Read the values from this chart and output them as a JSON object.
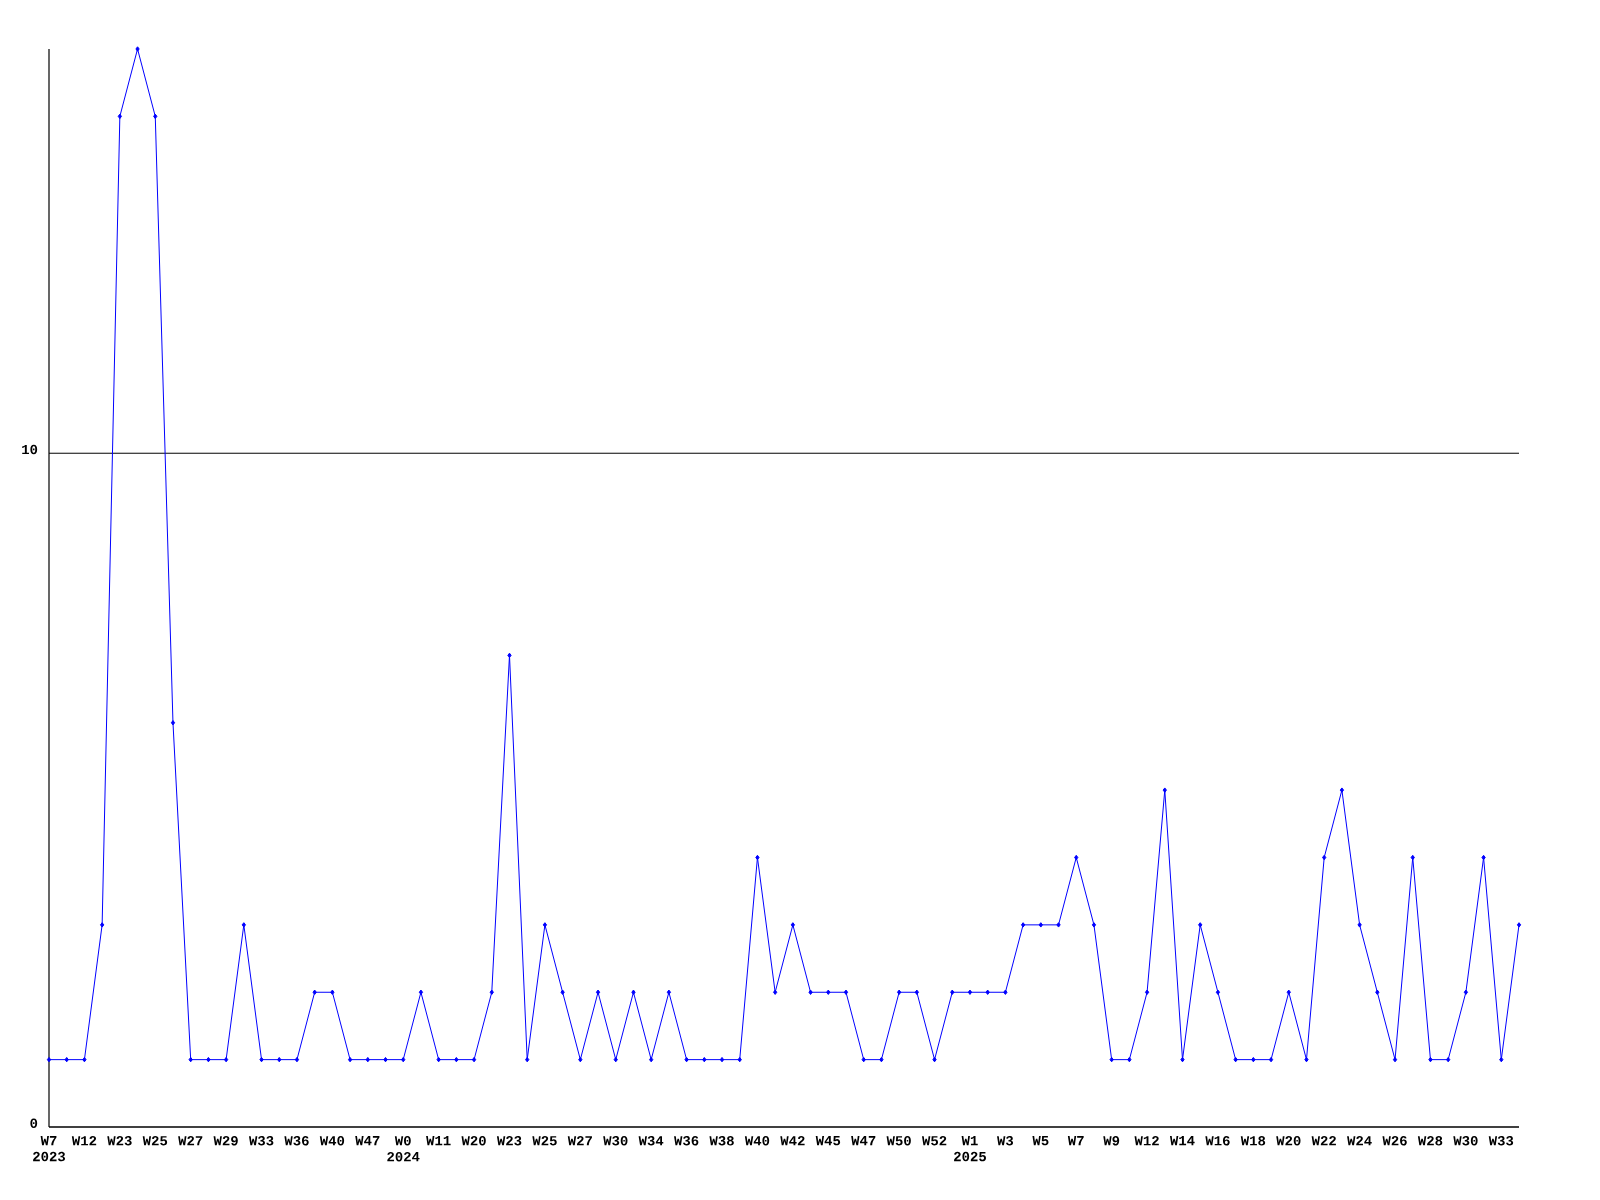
{
  "chart_data": {
    "type": "line",
    "categories": [
      "W7 2023",
      null,
      "W12",
      null,
      "W23",
      null,
      "W25",
      null,
      "W27",
      null,
      "W29",
      null,
      "W33",
      null,
      "W36",
      null,
      "W40",
      null,
      "W47",
      null,
      "W0 2024",
      null,
      "W11",
      null,
      "W20",
      null,
      "W23",
      null,
      "W25",
      null,
      "W27",
      null,
      "W30",
      null,
      "W34",
      null,
      "W36",
      null,
      "W38",
      null,
      "W40",
      null,
      "W42",
      null,
      "W45",
      null,
      "W47",
      null,
      "W50",
      null,
      "W52",
      null,
      "W1 2025",
      null,
      "W3",
      null,
      "W5",
      null,
      "W7",
      null,
      "W9",
      null,
      "W12",
      null,
      "W14",
      null,
      "W16",
      null,
      "W18",
      null,
      "W20",
      null,
      "W22",
      null,
      "W24",
      null,
      "W26",
      null,
      "W28",
      null,
      "W30",
      null,
      "W33",
      null
    ],
    "values": [
      1,
      1,
      1,
      3,
      15,
      16,
      15,
      6,
      1,
      1,
      1,
      3,
      1,
      1,
      1,
      2,
      2,
      1,
      1,
      1,
      1,
      2,
      1,
      1,
      1,
      2,
      7,
      1,
      3,
      2,
      1,
      2,
      1,
      2,
      1,
      2,
      1,
      1,
      1,
      1,
      4,
      2,
      3,
      2,
      2,
      2,
      1,
      1,
      2,
      2,
      1,
      2,
      2,
      2,
      2,
      3,
      3,
      3,
      4,
      3,
      1,
      1,
      2,
      5,
      1,
      3,
      2,
      1,
      1,
      1,
      2,
      1,
      4,
      5,
      3,
      2,
      1,
      4,
      1,
      1,
      2,
      4,
      1,
      3
    ],
    "color": "#0000ff",
    "marker": "diamond",
    "line_style": "solid",
    "ylim": [
      0,
      16
    ],
    "yticks": [
      0,
      10
    ],
    "grid": "y"
  }
}
